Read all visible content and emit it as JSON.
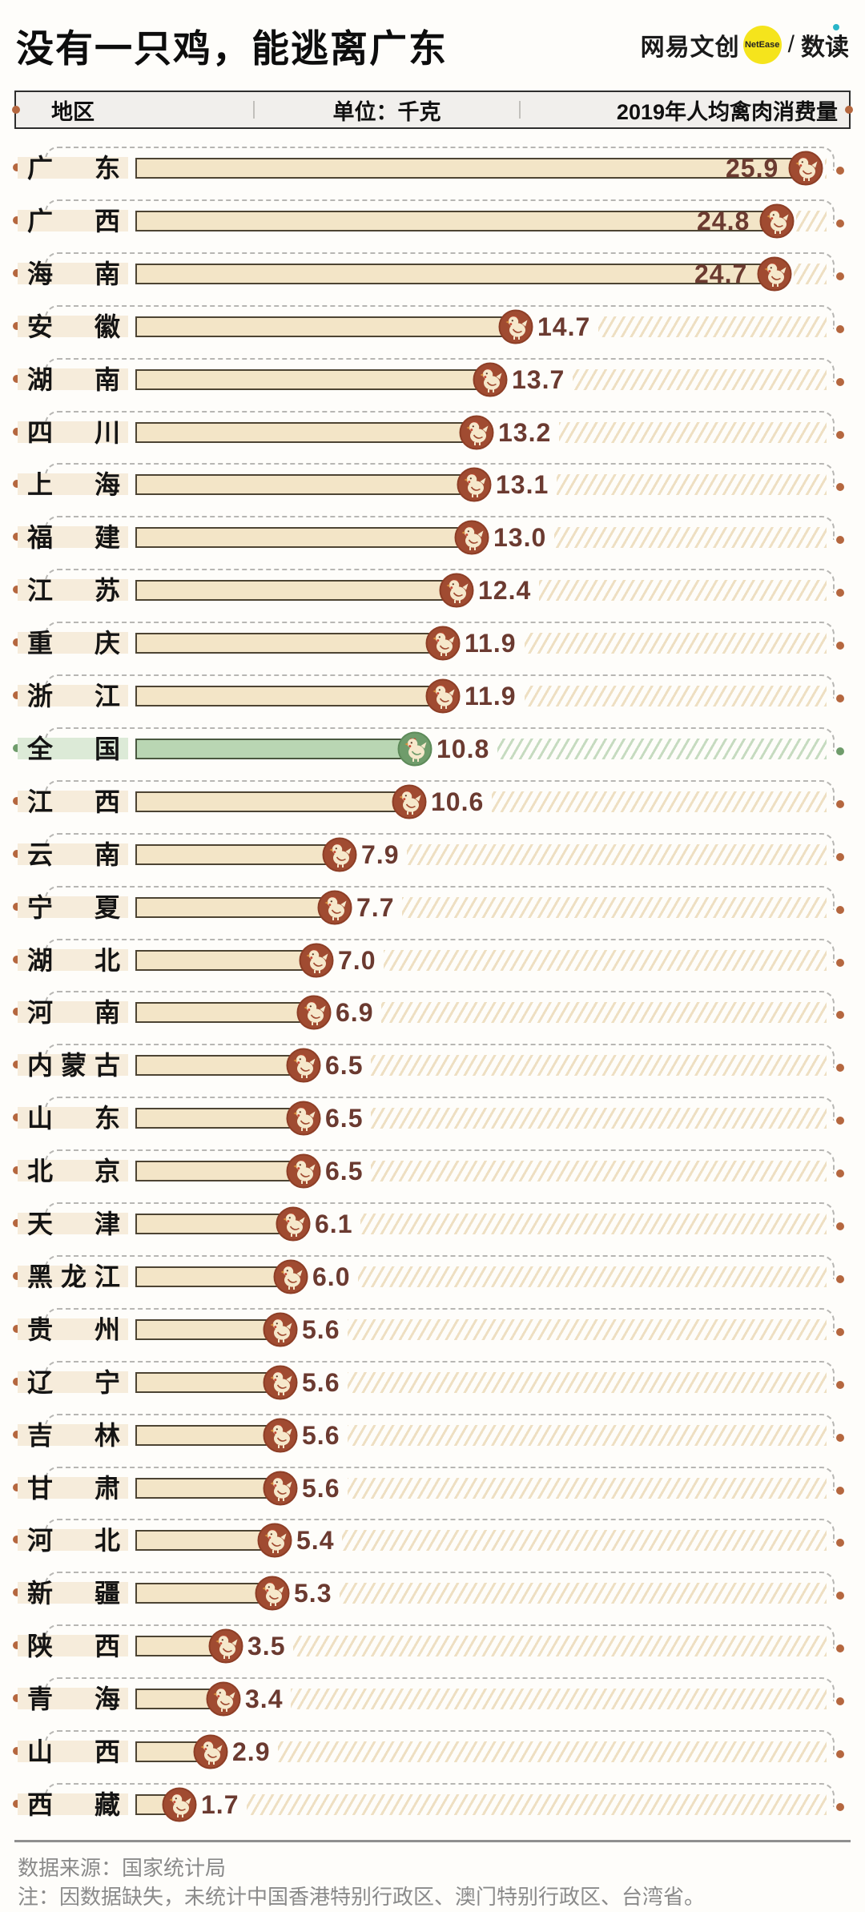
{
  "title": "没有一只鸡，能逃离广东",
  "logo": {
    "brand": "网易文创",
    "badge": "NetEase",
    "divider": "/",
    "product": "数读"
  },
  "table_header": {
    "region": "地区",
    "unit": "单位：千克",
    "metric": "2019年人均禽肉消费量"
  },
  "footer": {
    "source": "数据来源：国家统计局",
    "note": "注：因数据缺失，未统计中国香港特别行政区、澳门特别行政区、台湾省。"
  },
  "colors": {
    "accent_terracotta": "#A04B31",
    "national_green": "#6F9C6B",
    "bar_fill": "#F3E5C7",
    "national_bar_fill": "#B9D6B3",
    "bar_border": "#4D4433",
    "value_text": "#6B3A30",
    "label_highlight": "#F6ECDB",
    "hatch": "#EEDFC2",
    "badge_yellow": "#F5E41C",
    "product_dot_cyan": "#2AB5C8"
  },
  "chart_data": {
    "type": "bar",
    "orientation": "horizontal",
    "title": "2019年人均禽肉消费量",
    "unit": "千克",
    "year": "2019",
    "xlim": [
      0,
      26
    ],
    "legend": "全国行高亮为绿色",
    "regions": [
      {
        "name": "广东",
        "value": "25.9",
        "national": false
      },
      {
        "name": "广西",
        "value": "24.8",
        "national": false
      },
      {
        "name": "海南",
        "value": "24.7",
        "national": false
      },
      {
        "name": "安徽",
        "value": "14.7",
        "national": false
      },
      {
        "name": "湖南",
        "value": "13.7",
        "national": false
      },
      {
        "name": "四川",
        "value": "13.2",
        "national": false
      },
      {
        "name": "上海",
        "value": "13.1",
        "national": false
      },
      {
        "name": "福建",
        "value": "13.0",
        "national": false
      },
      {
        "name": "江苏",
        "value": "12.4",
        "national": false
      },
      {
        "name": "重庆",
        "value": "11.9",
        "national": false
      },
      {
        "name": "浙江",
        "value": "11.9",
        "national": false
      },
      {
        "name": "全国",
        "value": "10.8",
        "national": true
      },
      {
        "name": "江西",
        "value": "10.6",
        "national": false
      },
      {
        "name": "云南",
        "value": "7.9",
        "national": false
      },
      {
        "name": "宁夏",
        "value": "7.7",
        "national": false
      },
      {
        "name": "湖北",
        "value": "7.0",
        "national": false
      },
      {
        "name": "河南",
        "value": "6.9",
        "national": false
      },
      {
        "name": "内蒙古",
        "value": "6.5",
        "national": false
      },
      {
        "name": "山东",
        "value": "6.5",
        "national": false
      },
      {
        "name": "北京",
        "value": "6.5",
        "national": false
      },
      {
        "name": "天津",
        "value": "6.1",
        "national": false
      },
      {
        "name": "黑龙江",
        "value": "6.0",
        "national": false
      },
      {
        "name": "贵州",
        "value": "5.6",
        "national": false
      },
      {
        "name": "辽宁",
        "value": "5.6",
        "national": false
      },
      {
        "name": "吉林",
        "value": "5.6",
        "national": false
      },
      {
        "name": "甘肃",
        "value": "5.6",
        "national": false
      },
      {
        "name": "河北",
        "value": "5.4",
        "national": false
      },
      {
        "name": "新疆",
        "value": "5.3",
        "national": false
      },
      {
        "name": "陕西",
        "value": "3.5",
        "national": false
      },
      {
        "name": "青海",
        "value": "3.4",
        "national": false
      },
      {
        "name": "山西",
        "value": "2.9",
        "national": false
      },
      {
        "name": "西藏",
        "value": "1.7",
        "national": false
      }
    ]
  }
}
